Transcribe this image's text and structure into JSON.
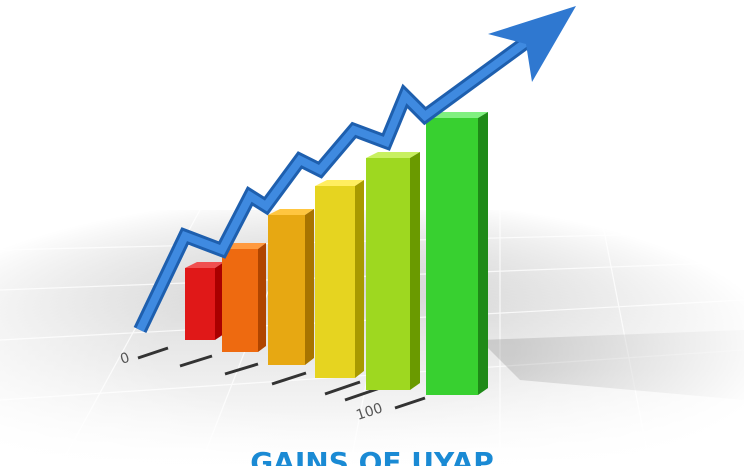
{
  "floor_labels": [
    "0",
    "100"
  ],
  "caption": "GAINS OF UYAP"
}
